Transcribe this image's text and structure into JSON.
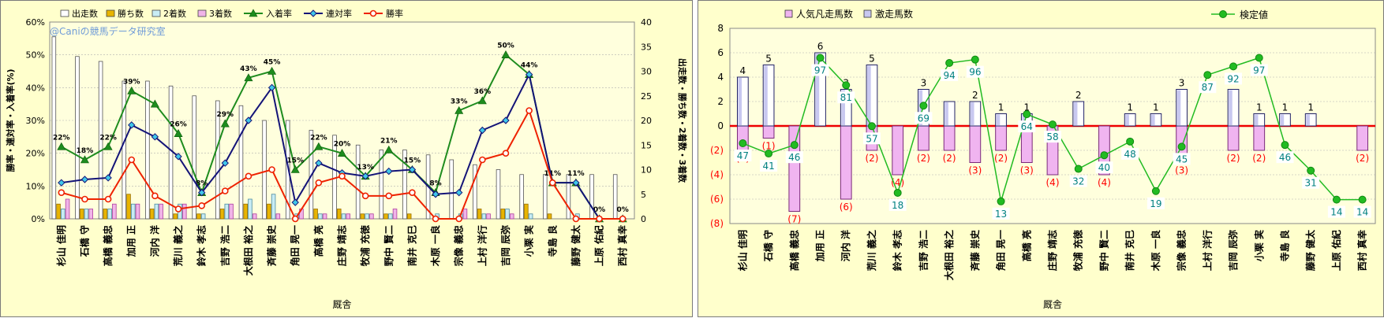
{
  "chart_data": [
    {
      "type": "bar",
      "x_label": "厩舎",
      "y_left_label": "勝率・連対率・入着率(%)",
      "y_right_label": "出走数・勝ち数・2着数・3着数",
      "y_left_ticks": [
        "0%",
        "10%",
        "20%",
        "30%",
        "40%",
        "50%",
        "60%"
      ],
      "y_right_ticks": [
        "0",
        "5",
        "10",
        "15",
        "20",
        "25",
        "30",
        "35",
        "40"
      ],
      "y_left_range": [
        0,
        60
      ],
      "y_right_range": [
        0,
        40
      ],
      "watermark": "@Caniの競馬データ研究室",
      "legend_position": "top",
      "categories": [
        "杉山 佳明",
        "石橋 守",
        "高橋 義忠",
        "加用 正",
        "河内 洋",
        "荒川 義之",
        "鈴木 孝志",
        "吉野 浩二",
        "大根田 裕之",
        "斉藤 崇史",
        "角田 晃一",
        "高橋 亮",
        "庄野 靖志",
        "牧浦 充徳",
        "野中 賢二",
        "南井 克巳",
        "木原 一良",
        "宗像 義忠",
        "上村 洋行",
        "吉岡 辰弥",
        "小栗 実",
        "寺島 良",
        "藤野 健太",
        "上原 佑紀",
        "西村 真幸"
      ],
      "series": [
        {
          "name": "出走数",
          "kind": "bar",
          "axis": "right",
          "color": "#ffffff",
          "values": [
            37,
            33,
            32,
            28,
            28,
            27,
            25,
            24,
            23,
            20,
            20,
            18,
            17,
            15,
            14,
            14,
            13,
            12,
            11,
            10,
            9,
            9,
            9,
            9,
            9
          ]
        },
        {
          "name": "勝ち数",
          "kind": "bar",
          "axis": "right",
          "color": "#e8b400",
          "values": [
            3,
            2,
            2,
            5,
            2,
            1,
            1,
            2,
            3,
            3,
            0,
            2,
            2,
            1,
            1,
            1,
            0,
            0,
            2,
            2,
            3,
            1,
            0,
            0,
            0
          ]
        },
        {
          "name": "2着数",
          "kind": "bar",
          "axis": "right",
          "color": "#c8ecf4",
          "values": [
            2,
            2,
            2,
            3,
            3,
            3,
            1,
            3,
            4,
            5,
            1,
            1,
            1,
            1,
            1,
            0,
            1,
            1,
            1,
            2,
            1,
            0,
            1,
            0,
            0
          ]
        },
        {
          "name": "3着数",
          "kind": "bar",
          "axis": "right",
          "color": "#f0b4e8",
          "values": [
            4,
            2,
            3,
            3,
            3,
            3,
            0,
            3,
            1,
            1,
            2,
            1,
            1,
            1,
            2,
            0,
            0,
            2,
            1,
            1,
            0,
            0,
            0,
            0,
            0
          ]
        },
        {
          "name": "入着率",
          "kind": "line",
          "axis": "left",
          "color": "#1e8c1e",
          "marker": "triangle",
          "values": [
            22,
            18,
            22,
            39,
            35,
            26,
            8,
            29,
            43,
            45,
            15,
            22,
            20,
            13,
            21,
            15,
            8,
            33,
            36,
            50,
            44,
            11,
            11,
            0,
            0
          ],
          "labels": [
            "22%",
            "18%",
            "22%",
            "39%",
            "",
            "26%",
            "8%",
            "29%",
            "43%",
            "45%",
            "15%",
            "22%",
            "20%",
            "13%",
            "21%",
            "15%",
            "8%",
            "33%",
            "36%",
            "50%",
            "44%",
            "11%",
            "11%",
            "0%",
            "0%"
          ]
        },
        {
          "name": "連対率",
          "kind": "line",
          "axis": "left",
          "color": "#141478",
          "marker": "diamond",
          "values": [
            11,
            12,
            12.5,
            28.6,
            25,
            19,
            8,
            17,
            30,
            40,
            5,
            17,
            14,
            13,
            14.5,
            15,
            7.5,
            8,
            27,
            30,
            44,
            11,
            11,
            0,
            0
          ]
        },
        {
          "name": "勝率",
          "kind": "line",
          "axis": "left",
          "color": "#ee2200",
          "marker": "circle",
          "values": [
            8,
            6,
            6,
            18,
            7,
            3,
            4,
            8.5,
            13,
            15,
            0,
            11,
            13,
            7,
            7,
            8,
            0,
            0,
            18,
            20,
            33,
            11,
            0,
            0,
            0
          ]
        }
      ]
    },
    {
      "type": "bar",
      "x_label": "厩舎",
      "y_ticks": [
        "8",
        "6",
        "4",
        "2",
        "0",
        "(2)",
        "(4)",
        "(6)",
        "(8)"
      ],
      "y_range": [
        -8,
        8
      ],
      "legend_position": "top",
      "categories": [
        "杉山 佳明",
        "石橋 守",
        "高橋 義忠",
        "加用 正",
        "河内 洋",
        "荒川 義之",
        "鈴木 孝志",
        "吉野 浩二",
        "大根田 裕之",
        "斉藤 崇史",
        "角田 晃一",
        "高橋 亮",
        "庄野 靖志",
        "牧浦 充徳",
        "野中 賢二",
        "南井 克巳",
        "木原 一良",
        "宗像 義忠",
        "上村 洋行",
        "吉岡 辰弥",
        "小栗 実",
        "寺島 良",
        "藤野 健太",
        "上原 佑紀",
        "西村 真幸"
      ],
      "series": [
        {
          "name": "人気凡走馬数",
          "kind": "bar",
          "color": "#f0b4f0",
          "values": [
            -2,
            -1,
            -7,
            0,
            -6,
            -2,
            -4,
            -2,
            -2,
            -3,
            -2,
            -3,
            -4,
            0,
            -4,
            0,
            0,
            -3,
            0,
            -2,
            -2,
            0,
            0,
            0,
            -2
          ],
          "labels": [
            "(2)",
            "(1)",
            "(7)",
            "",
            "(6)",
            "(2)",
            "(4)",
            "(2)",
            "(2)",
            "(3)",
            "(2)",
            "(3)",
            "(4)",
            "",
            "(4)",
            "",
            "",
            "(3)",
            "",
            "(2)",
            "(2)",
            "",
            "",
            "",
            "(2)"
          ]
        },
        {
          "name": "激走馬数",
          "kind": "bar",
          "color": "#c8c8f0",
          "values": [
            4,
            5,
            0,
            6,
            3,
            5,
            0,
            3,
            2,
            2,
            1,
            1,
            0,
            2,
            0,
            1,
            1,
            3,
            0,
            3,
            1,
            1,
            1,
            0,
            0
          ],
          "labels": [
            "4",
            "5",
            "",
            "6",
            "3",
            "5",
            "",
            "3",
            "",
            "2",
            "1",
            "1",
            "",
            "2",
            "",
            "1",
            "1",
            "3",
            "",
            "",
            "1",
            "1",
            "1",
            "",
            ""
          ]
        },
        {
          "name": "検定値",
          "kind": "line",
          "color": "#22bb22",
          "marker": "circle",
          "values": [
            47,
            41,
            46,
            97,
            81,
            57,
            18,
            69,
            94,
            96,
            13,
            64,
            58,
            32,
            40,
            48,
            19,
            45,
            87,
            92,
            97,
            46,
            31,
            14,
            14
          ]
        }
      ]
    }
  ]
}
